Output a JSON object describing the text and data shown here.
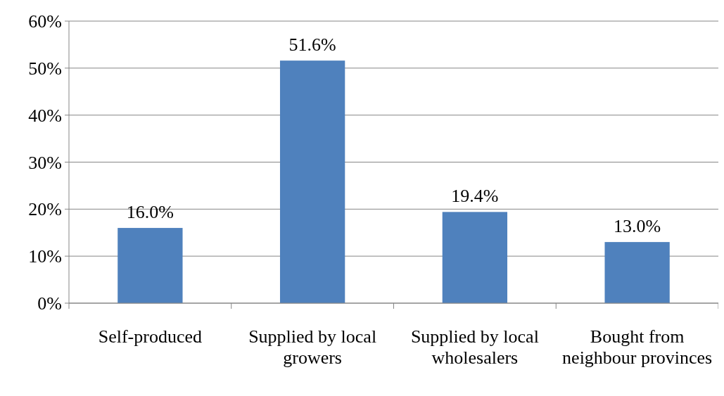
{
  "chart_data": {
    "type": "bar",
    "categories": [
      "Self-produced",
      "Supplied by local growers",
      "Supplied by local wholesalers",
      "Bought from neighbour provinces"
    ],
    "values": [
      16.0,
      51.6,
      19.4,
      13.0
    ],
    "color": "#4f81bd",
    "ylim": [
      0,
      60
    ],
    "yticks": [
      {
        "value": 0,
        "label": "0%"
      },
      {
        "value": 10,
        "label": "10%"
      },
      {
        "value": 20,
        "label": "20%"
      },
      {
        "value": 30,
        "label": "30%"
      },
      {
        "value": 40,
        "label": "40%"
      },
      {
        "value": 50,
        "label": "50%"
      },
      {
        "value": 60,
        "label": "60%"
      }
    ],
    "grid": "y",
    "data_labels": true,
    "value_labels": [
      "16.0%",
      "51.6%",
      "19.4%",
      "13.0%"
    ]
  }
}
